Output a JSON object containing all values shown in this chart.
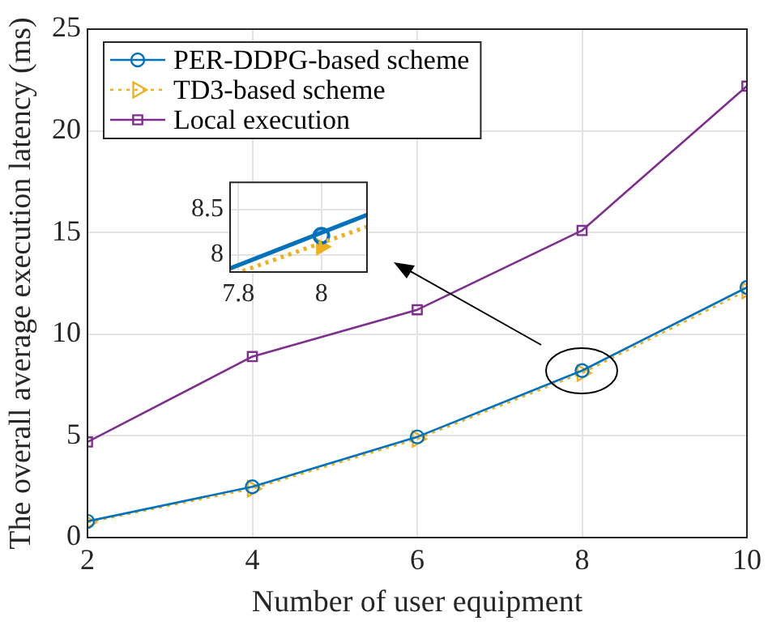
{
  "chart_data": [
    {
      "type": "line",
      "xlabel": "Number of user equipment",
      "ylabel": "The overall average execution latency (ms)",
      "x": [
        2,
        4,
        6,
        8,
        10
      ],
      "xlim": [
        2,
        10
      ],
      "xticks": [
        2,
        4,
        6,
        8,
        10
      ],
      "ylim": [
        0,
        25
      ],
      "yticks": [
        0,
        5,
        10,
        15,
        20,
        25
      ],
      "grid": true,
      "legend": "top left",
      "series": [
        {
          "name": "PER-DDPG-based scheme",
          "color": "#0072bd",
          "marker": "circle",
          "line_style": "solid",
          "values": [
            0.8,
            2.5,
            4.95,
            8.21,
            12.3
          ]
        },
        {
          "name": "TD3-based scheme",
          "color": "#edb120",
          "marker": "triangle",
          "line_style": "dotted",
          "values": [
            0.75,
            2.4,
            4.85,
            8.09,
            12.15
          ]
        },
        {
          "name": "Local execution",
          "color": "#7e2f8e",
          "marker": "square",
          "line_style": "solid",
          "values": [
            4.7,
            8.9,
            11.2,
            15.1,
            22.2
          ]
        }
      ]
    },
    {
      "type": "line",
      "xlim": [
        7.78,
        8.11
      ],
      "xticks": [
        7.8,
        8
      ],
      "ylim": [
        7.81,
        8.8
      ],
      "yticks": [
        8,
        8.5
      ],
      "grid": true,
      "series": [
        {
          "color": "#0072bd",
          "marker": "none",
          "line_style": "solid",
          "x": [
            7.78,
            8.11
          ],
          "values": [
            7.85,
            8.44
          ]
        },
        {
          "color": "#edb120",
          "marker": "none",
          "line_style": "dotted",
          "x": [
            7.81,
            8.11
          ],
          "values": [
            7.82,
            8.31
          ]
        },
        {
          "color": "#0072bd",
          "marker": "circle",
          "x": [
            8
          ],
          "values": [
            8.21
          ]
        },
        {
          "color": "#edb120",
          "marker": "triangle",
          "x": [
            8
          ],
          "values": [
            8.09
          ]
        }
      ]
    }
  ]
}
